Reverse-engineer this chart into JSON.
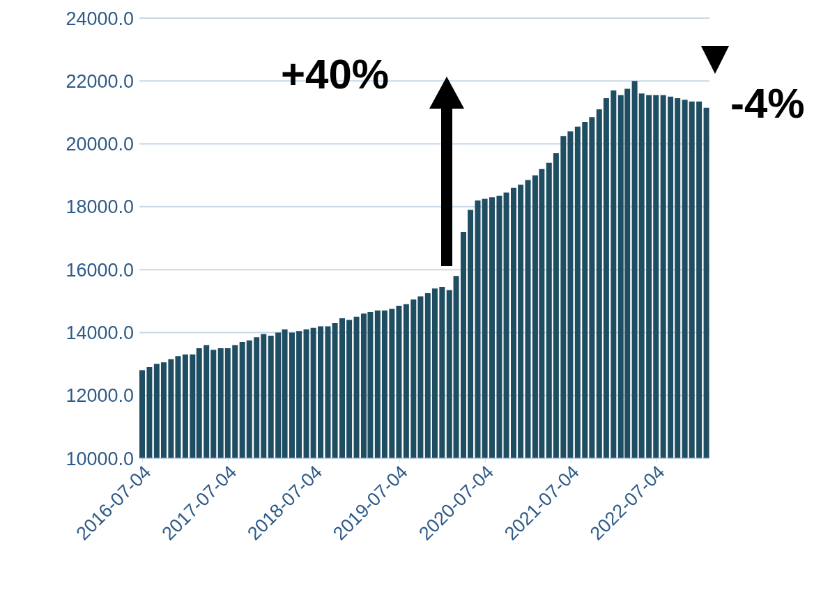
{
  "chart_data": {
    "type": "bar",
    "color": "#1f4e63",
    "x": [
      "2016-07-01",
      "2016-08-01",
      "2016-09-01",
      "2016-10-01",
      "2016-11-01",
      "2016-12-01",
      "2017-01-01",
      "2017-02-01",
      "2017-03-01",
      "2017-04-01",
      "2017-05-01",
      "2017-06-01",
      "2017-07-01",
      "2017-08-01",
      "2017-09-01",
      "2017-10-01",
      "2017-11-01",
      "2017-12-01",
      "2018-01-01",
      "2018-02-01",
      "2018-03-01",
      "2018-04-01",
      "2018-05-01",
      "2018-06-01",
      "2018-07-01",
      "2018-08-01",
      "2018-09-01",
      "2018-10-01",
      "2018-11-01",
      "2018-12-01",
      "2019-01-01",
      "2019-02-01",
      "2019-03-01",
      "2019-04-01",
      "2019-05-01",
      "2019-06-01",
      "2019-07-01",
      "2019-08-01",
      "2019-09-01",
      "2019-10-01",
      "2019-11-01",
      "2019-12-01",
      "2020-01-01",
      "2020-02-01",
      "2020-03-01",
      "2020-04-01",
      "2020-05-01",
      "2020-06-01",
      "2020-07-01",
      "2020-08-01",
      "2020-09-01",
      "2020-10-01",
      "2020-11-01",
      "2020-12-01",
      "2021-01-01",
      "2021-02-01",
      "2021-03-01",
      "2021-04-01",
      "2021-05-01",
      "2021-06-01",
      "2021-07-01",
      "2021-08-01",
      "2021-09-01",
      "2021-10-01",
      "2021-11-01",
      "2021-12-01",
      "2022-01-01",
      "2022-02-01",
      "2022-03-01",
      "2022-04-01",
      "2022-05-01",
      "2022-06-01",
      "2022-07-01",
      "2022-08-01",
      "2022-09-01",
      "2022-10-01",
      "2022-11-01",
      "2022-12-01",
      "2023-01-01",
      "2023-02-01"
    ],
    "values": [
      12800,
      12900,
      13000,
      13050,
      13150,
      13250,
      13300,
      13300,
      13500,
      13600,
      13450,
      13500,
      13500,
      13600,
      13700,
      13750,
      13850,
      13950,
      13900,
      14000,
      14100,
      14000,
      14050,
      14100,
      14150,
      14200,
      14200,
      14300,
      14450,
      14400,
      14500,
      14600,
      14650,
      14700,
      14700,
      14750,
      14850,
      14900,
      15050,
      15150,
      15250,
      15400,
      15450,
      15350,
      15800,
      17200,
      17900,
      18200,
      18250,
      18300,
      18350,
      18450,
      18600,
      18700,
      18850,
      19000,
      19200,
      19400,
      19700,
      20250,
      20400,
      20550,
      20700,
      20850,
      21100,
      21450,
      21700,
      21550,
      21750,
      22000,
      21600,
      21550,
      21550,
      21550,
      21500,
      21450,
      21400,
      21350,
      21350,
      21150
    ],
    "xlim": [
      "2016-06-20",
      "2023-02-15"
    ],
    "xticks": [
      "2016-07-04",
      "2017-07-04",
      "2018-07-04",
      "2019-07-04",
      "2020-07-04",
      "2021-07-04",
      "2022-07-04"
    ],
    "ylim": [
      10000,
      24000
    ],
    "yticks": [
      {
        "value": 10000,
        "label": "10000.0"
      },
      {
        "value": 12000,
        "label": "12000.0"
      },
      {
        "value": 14000,
        "label": "14000.0"
      },
      {
        "value": 16000,
        "label": "16000.0"
      },
      {
        "value": 18000,
        "label": "18000.0"
      },
      {
        "value": 20000,
        "label": "20000.0"
      },
      {
        "value": 22000,
        "label": "22000.0"
      },
      {
        "value": 24000,
        "label": "24000.0"
      }
    ],
    "grid": "y",
    "annotations": [
      "+40%",
      "-4%"
    ]
  }
}
